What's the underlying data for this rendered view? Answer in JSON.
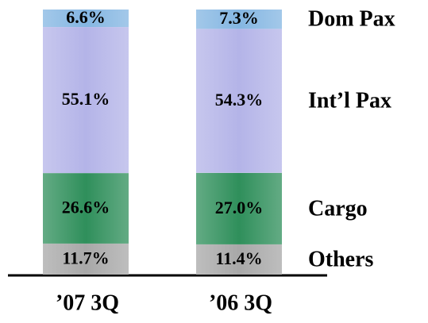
{
  "chart_data": {
    "type": "stacked_bar",
    "categories": [
      "’07 3Q",
      "’06 3Q"
    ],
    "ylim": [
      0,
      100
    ],
    "series": [
      {
        "name": "Others",
        "color": "#a8a8a8",
        "values": [
          11.7,
          11.4
        ],
        "value_labels": [
          "11.7%",
          "11.4%"
        ]
      },
      {
        "name": "Cargo",
        "color": "#2f8f5b",
        "values": [
          26.6,
          27.0
        ],
        "value_labels": [
          "26.6%",
          "27.0%"
        ]
      },
      {
        "name": "Int’l Pax",
        "color": "#b4b4e8",
        "values": [
          55.1,
          54.3
        ],
        "value_labels": [
          "55.1%",
          "54.3%"
        ]
      },
      {
        "name": "Dom Pax",
        "color": "#84b6e2",
        "values": [
          6.6,
          7.3
        ],
        "value_labels": [
          "6.6%",
          "7.3%"
        ]
      }
    ]
  }
}
